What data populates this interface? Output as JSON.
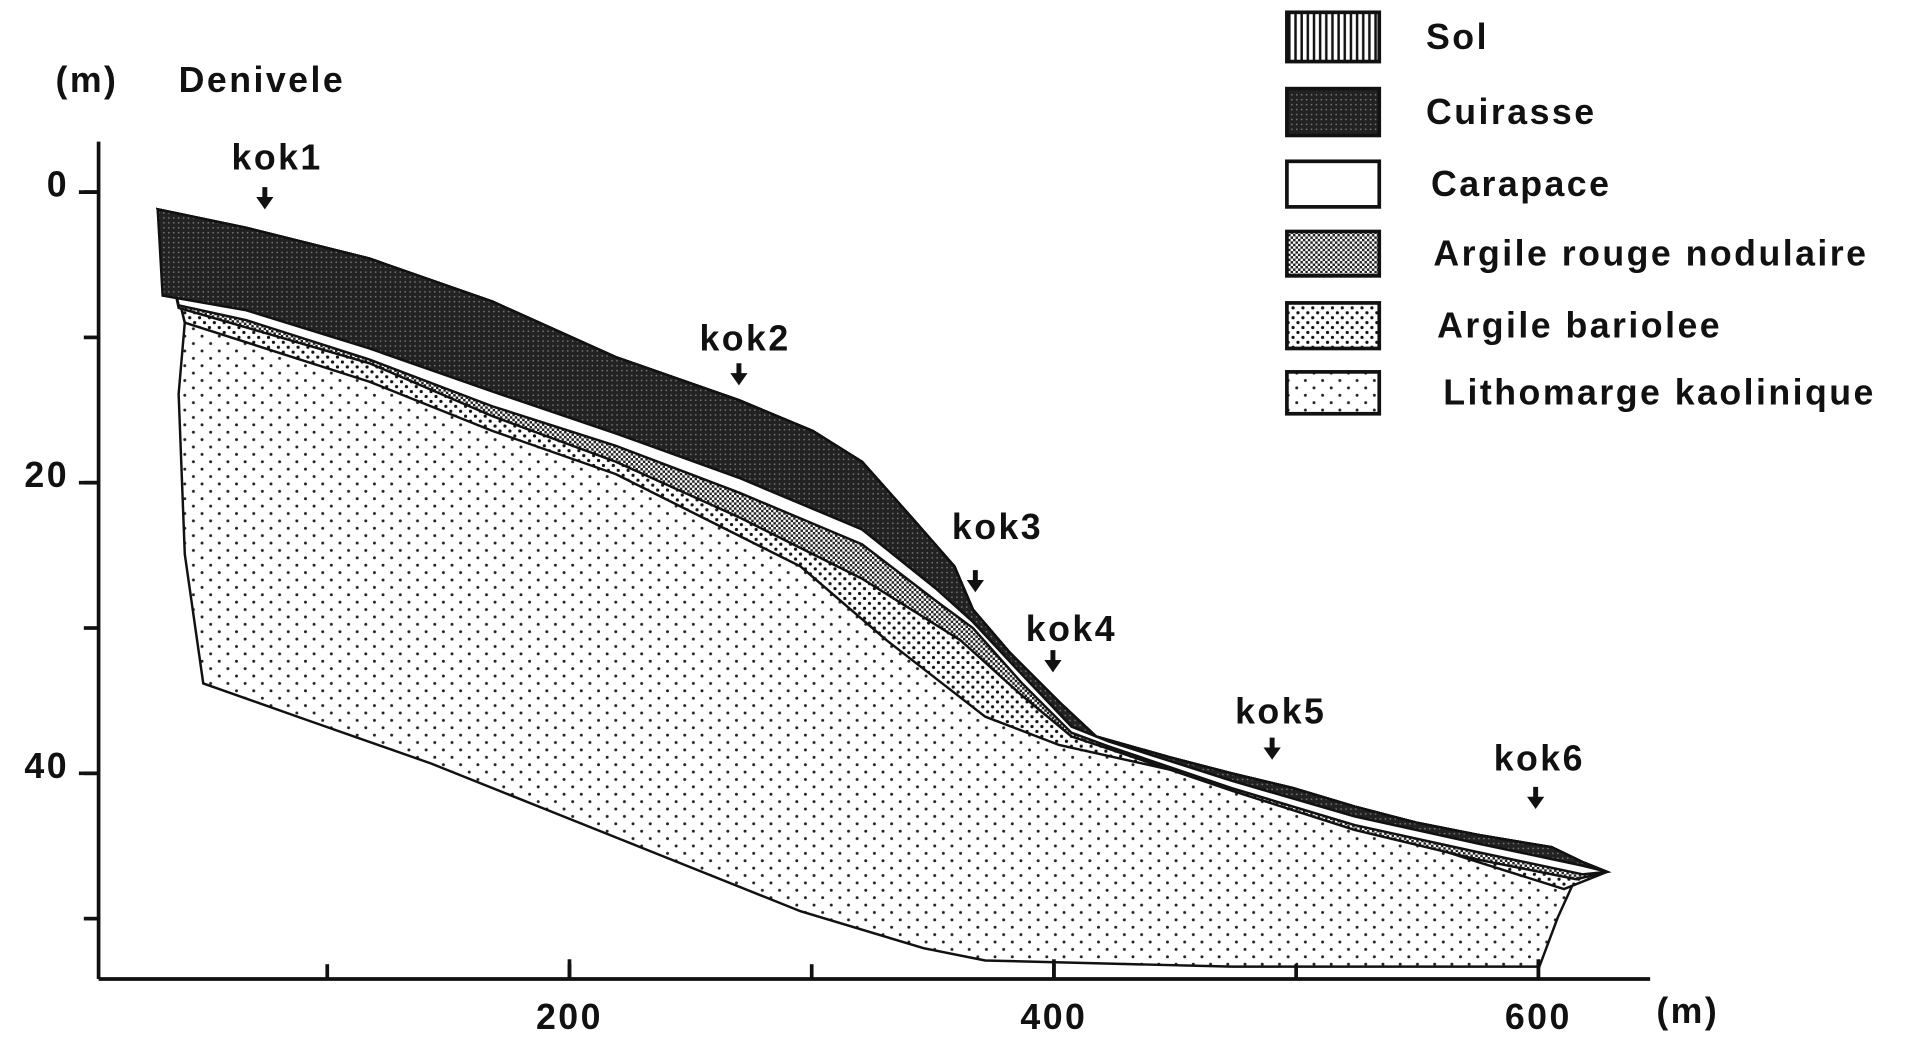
{
  "y_axis": {
    "unit": "(m)",
    "title": "Denivele",
    "ticks": [
      0,
      20,
      40
    ]
  },
  "x_axis": {
    "unit": "(m)",
    "ticks": [
      200,
      400,
      600
    ]
  },
  "profiles": [
    "kok1",
    "kok2",
    "kok3",
    "kok4",
    "kok5",
    "kok6"
  ],
  "legend": [
    "Sol",
    "Cuirasse",
    "Carapace",
    "Argile rouge nodulaire",
    "Argile bariolee",
    "Lithomarge kaolinique"
  ]
}
